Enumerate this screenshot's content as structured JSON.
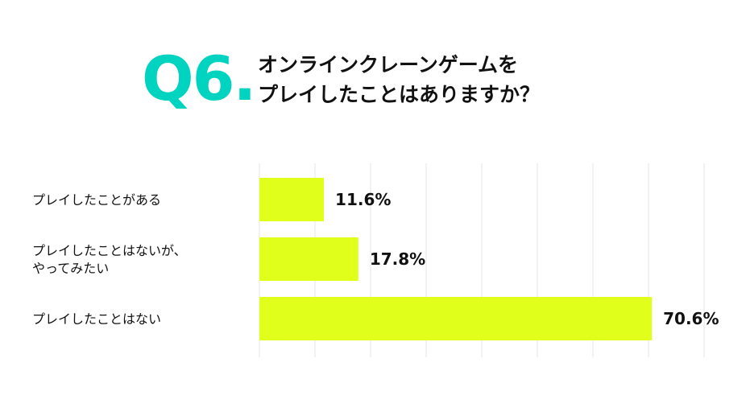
{
  "header": {
    "q_number": "Q6.",
    "question_lines": [
      "オンラインクレーンゲームを",
      "プレイしたことはありますか？"
    ]
  },
  "colors": {
    "accent": "#00d3bf",
    "bar": "#e0ff1a",
    "grid": "#e6e6e6",
    "text": "#111111"
  },
  "chart_data": {
    "type": "bar",
    "orientation": "horizontal",
    "categories": [
      [
        "プレイしたことがある"
      ],
      [
        "プレイしたことはないが、",
        "やってみたい"
      ],
      [
        "プレイしたことはない"
      ]
    ],
    "values": [
      11.6,
      17.8,
      70.6
    ],
    "value_labels": [
      "11.6%",
      "17.8%",
      "70.6%"
    ],
    "xlim": [
      0,
      80
    ],
    "grid": true
  }
}
